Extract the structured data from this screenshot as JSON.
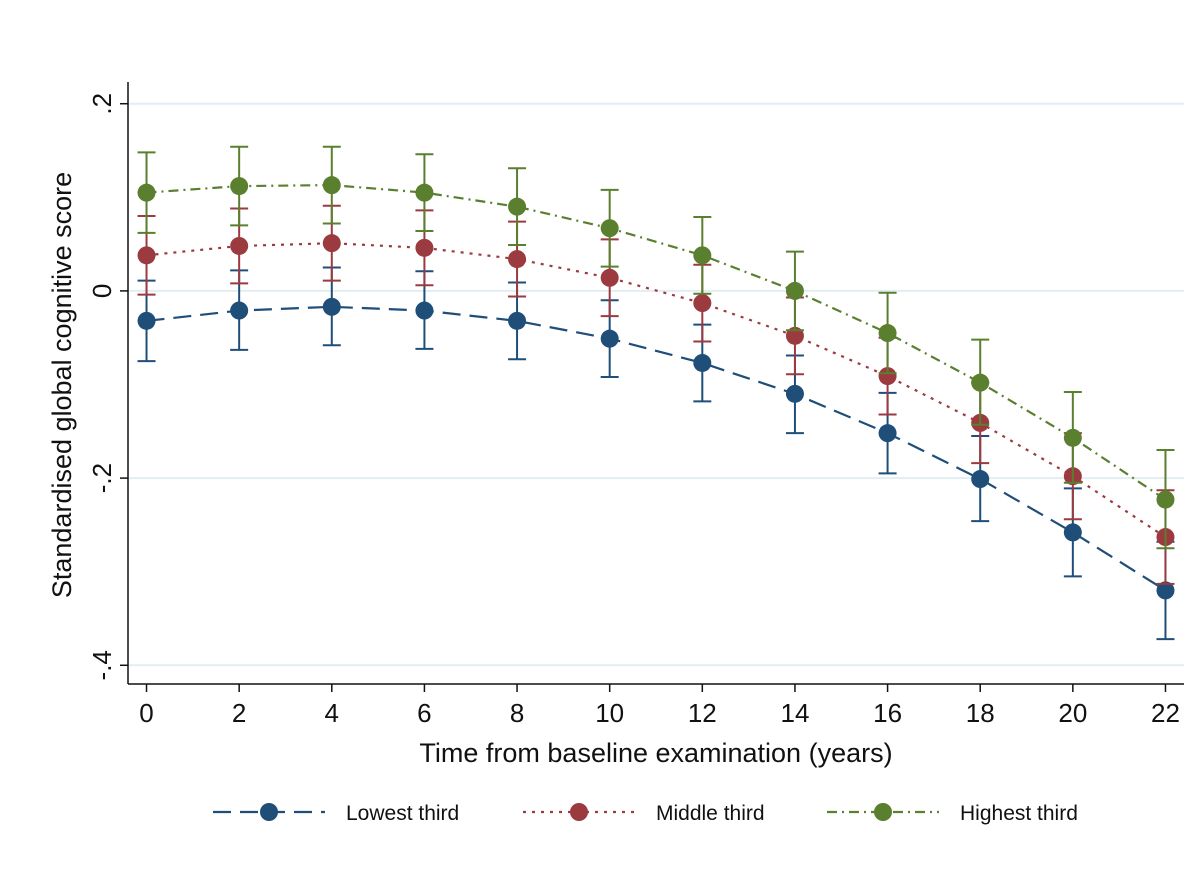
{
  "chart_data": {
    "type": "line",
    "xlabel": "Time from baseline examination (years)",
    "ylabel": "Standardised global cognitive score",
    "x": [
      0,
      2,
      4,
      6,
      8,
      10,
      12,
      14,
      16,
      18,
      20,
      22
    ],
    "x_ticks": [
      0,
      2,
      4,
      6,
      8,
      10,
      12,
      14,
      16,
      18,
      20,
      22
    ],
    "y_ticks": [
      {
        "value": 0.2,
        "label": ".2"
      },
      {
        "value": 0,
        "label": "0"
      },
      {
        "value": -0.2,
        "label": "-.2"
      },
      {
        "value": -0.4,
        "label": "-.4"
      }
    ],
    "xlim": [
      -0.4,
      22.4
    ],
    "ylim": [
      -0.42,
      0.22
    ],
    "grid": true,
    "legend_position": "bottom",
    "error_bars": true,
    "series": [
      {
        "name": "Lowest third",
        "color": "#1f4e79",
        "line_style": "dashed",
        "values": [
          -0.032,
          -0.021,
          -0.017,
          -0.021,
          -0.032,
          -0.051,
          -0.077,
          -0.11,
          -0.152,
          -0.201,
          -0.258,
          -0.32
        ],
        "lower": [
          -0.075,
          -0.063,
          -0.058,
          -0.062,
          -0.073,
          -0.092,
          -0.118,
          -0.152,
          -0.195,
          -0.246,
          -0.305,
          -0.372
        ],
        "upper": [
          0.011,
          0.022,
          0.025,
          0.021,
          0.009,
          -0.01,
          -0.036,
          -0.069,
          -0.109,
          -0.155,
          -0.211,
          -0.268
        ]
      },
      {
        "name": "Middle third",
        "color": "#9b3a3f",
        "line_style": "dotted",
        "values": [
          0.038,
          0.048,
          0.051,
          0.046,
          0.034,
          0.014,
          -0.013,
          -0.048,
          -0.091,
          -0.141,
          -0.198,
          -0.263
        ],
        "lower": [
          -0.004,
          0.008,
          0.011,
          0.006,
          -0.006,
          -0.027,
          -0.054,
          -0.089,
          -0.132,
          -0.184,
          -0.244,
          -0.313
        ],
        "upper": [
          0.08,
          0.088,
          0.091,
          0.086,
          0.074,
          0.055,
          0.028,
          -0.007,
          -0.05,
          -0.098,
          -0.152,
          -0.213
        ]
      },
      {
        "name": "Highest third",
        "color": "#5a7f2f",
        "line_style": "dash-dot",
        "values": [
          0.105,
          0.112,
          0.113,
          0.105,
          0.09,
          0.067,
          0.038,
          0.0,
          -0.045,
          -0.098,
          -0.157,
          -0.223
        ],
        "lower": [
          0.062,
          0.07,
          0.072,
          0.064,
          0.049,
          0.026,
          -0.003,
          -0.042,
          -0.088,
          -0.143,
          -0.205,
          -0.275
        ],
        "upper": [
          0.148,
          0.154,
          0.154,
          0.146,
          0.131,
          0.108,
          0.079,
          0.042,
          -0.002,
          -0.052,
          -0.108,
          -0.17
        ]
      }
    ]
  }
}
